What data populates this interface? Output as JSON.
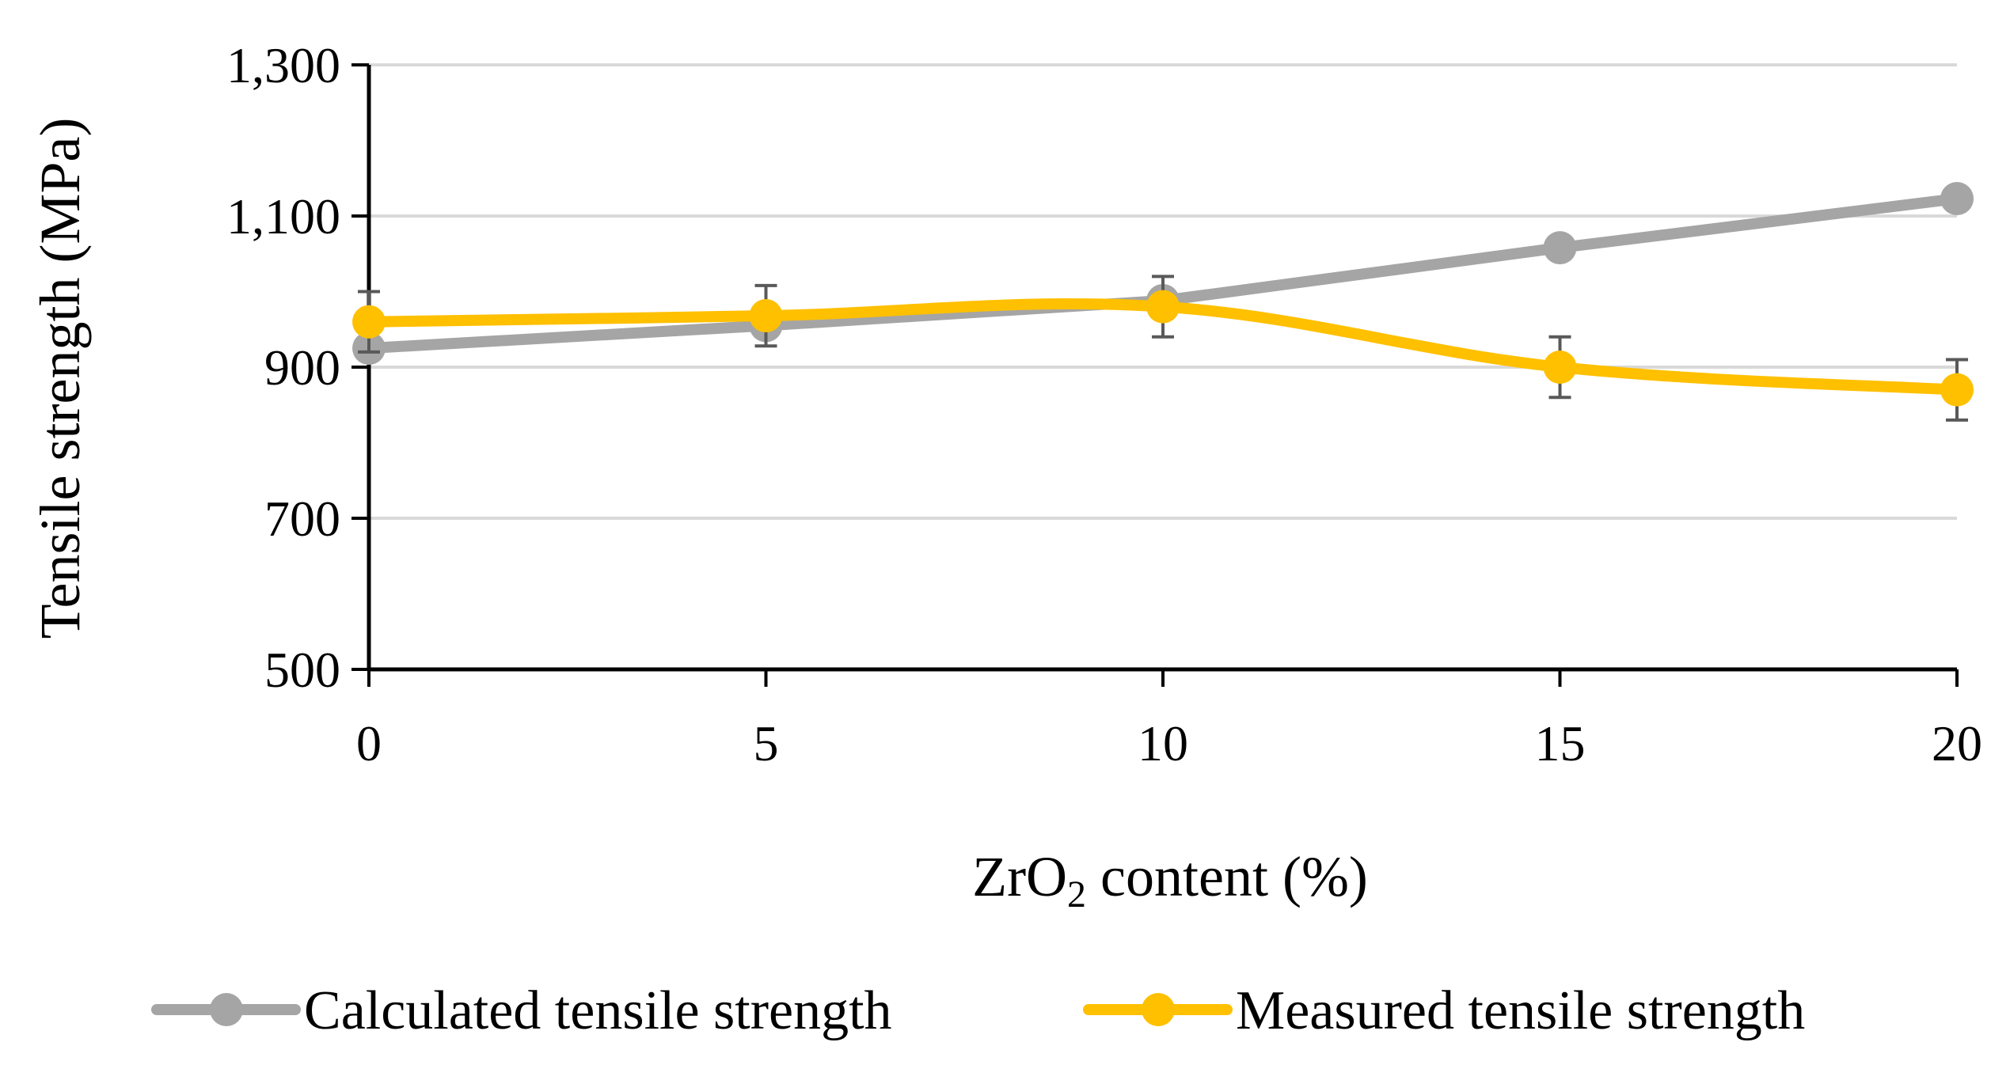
{
  "chart_data": {
    "type": "line",
    "title": "",
    "xlabel": {
      "base": "ZrO",
      "subscript": "2",
      "suffix": " content (%)"
    },
    "ylabel": "Tensile strength (MPa)",
    "x": [
      0,
      5,
      10,
      15,
      20
    ],
    "x_tick_labels": [
      "0",
      "5",
      "10",
      "15",
      "20"
    ],
    "xlim": [
      0,
      20
    ],
    "y_ticks": [
      500,
      700,
      900,
      1100,
      1300
    ],
    "y_tick_labels": [
      "500",
      "700",
      "900",
      "1,100",
      "1,300"
    ],
    "ylim": [
      500,
      1300
    ],
    "grid": "horizontal",
    "legend_position": "bottom",
    "series": [
      {
        "name": "Calculated tensile strength",
        "color": "#A5A5A5",
        "values": [
          925,
          955,
          988,
          1058,
          1123
        ],
        "error": null,
        "smooth": false
      },
      {
        "name": "Measured tensile strength",
        "color": "#FFC000",
        "values": [
          960,
          968,
          980,
          900,
          870
        ],
        "error": [
          40,
          40,
          40,
          40,
          40
        ],
        "smooth": true
      }
    ]
  }
}
